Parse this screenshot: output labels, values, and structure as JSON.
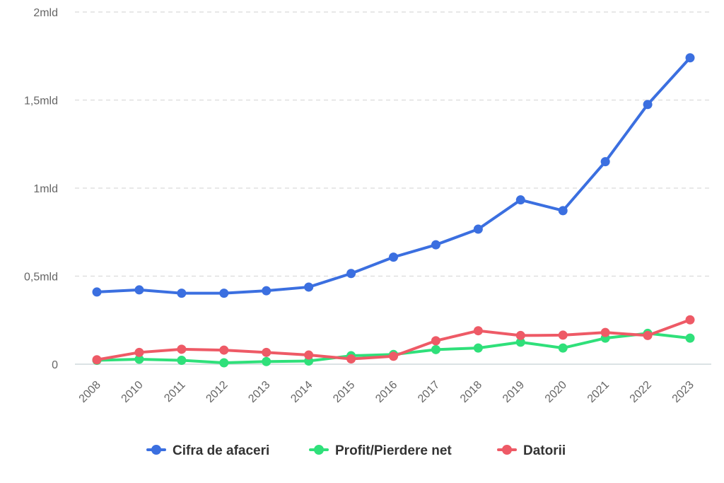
{
  "chart_data": {
    "type": "line",
    "title": "",
    "xlabel": "",
    "ylabel": "",
    "categories": [
      "2008",
      "2010",
      "2011",
      "2012",
      "2013",
      "2014",
      "2015",
      "2016",
      "2017",
      "2018",
      "2019",
      "2020",
      "2021",
      "2022",
      "2023"
    ],
    "ylim": [
      0,
      2000000000
    ],
    "yticks": [
      {
        "value": 0,
        "label": "0"
      },
      {
        "value": 500000000,
        "label": "0,5mld"
      },
      {
        "value": 1000000000,
        "label": "1mld"
      },
      {
        "value": 1500000000,
        "label": "1,5mld"
      },
      {
        "value": 2000000000,
        "label": "2mld"
      }
    ],
    "grid": true,
    "legend_position": "bottom",
    "series": [
      {
        "name": "Cifra de afaceri",
        "color": "#3b6fe0",
        "values": [
          410000000,
          422000000,
          403000000,
          403000000,
          417000000,
          438000000,
          515000000,
          608000000,
          678000000,
          767000000,
          933000000,
          872000000,
          1150000000,
          1475000000,
          1740000000
        ]
      },
      {
        "name": "Profit/Pierdere net",
        "color": "#2fe07a",
        "values": [
          22000000,
          28000000,
          22000000,
          8000000,
          15000000,
          18000000,
          48000000,
          55000000,
          83000000,
          92000000,
          125000000,
          92000000,
          148000000,
          175000000,
          148000000
        ]
      },
      {
        "name": "Datorii",
        "color": "#ee5a66",
        "values": [
          25000000,
          67000000,
          85000000,
          80000000,
          67000000,
          52000000,
          30000000,
          45000000,
          133000000,
          190000000,
          163000000,
          165000000,
          180000000,
          163000000,
          252000000
        ]
      }
    ]
  }
}
